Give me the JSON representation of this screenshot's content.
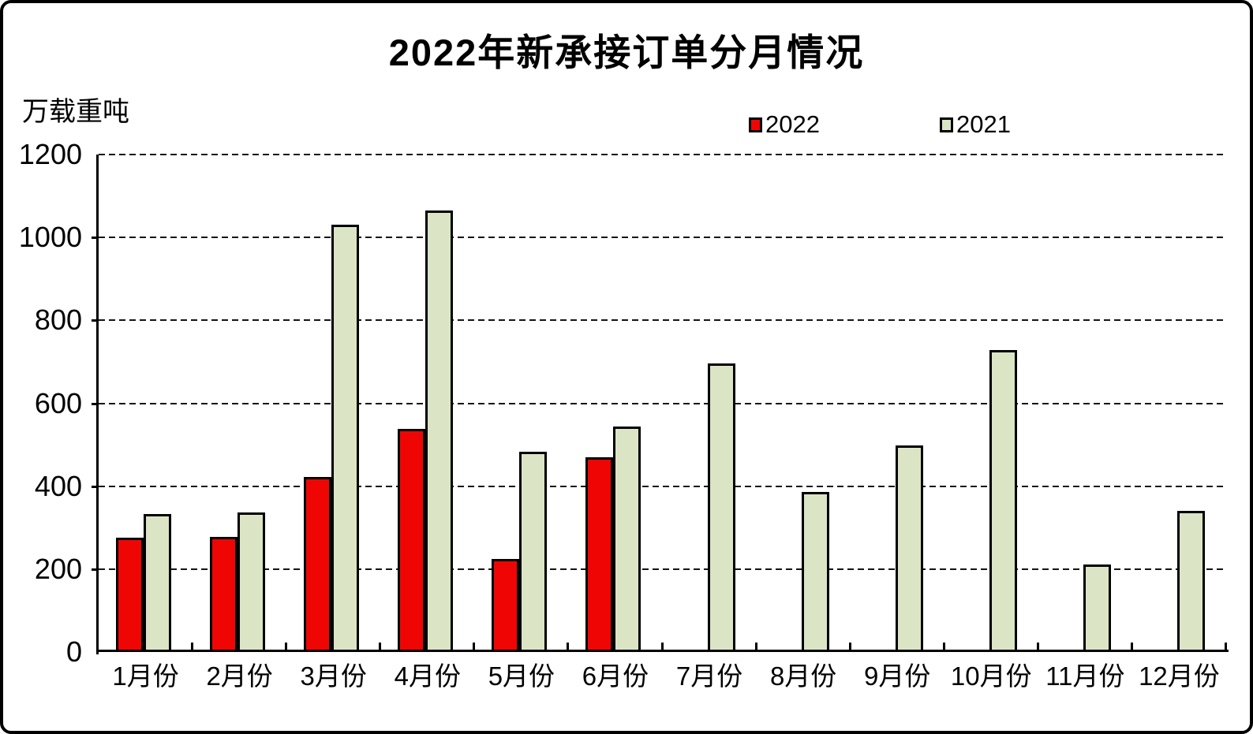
{
  "chart_data": {
    "type": "bar",
    "title": "2022年新承接订单分月情况",
    "ylabel": "万载重吨",
    "categories": [
      "1月份",
      "2月份",
      "3月份",
      "4月份",
      "5月份",
      "6月份",
      "7月份",
      "8月份",
      "9月份",
      "10月份",
      "11月份",
      "12月份"
    ],
    "series": [
      {
        "name": "2022",
        "color": "#f00505",
        "values": [
          276,
          278,
          422,
          538,
          224,
          470,
          null,
          null,
          null,
          null,
          null,
          null
        ]
      },
      {
        "name": "2021",
        "color": "#dbe5c5",
        "values": [
          333,
          337,
          1030,
          1065,
          483,
          544,
          696,
          386,
          498,
          728,
          211,
          340
        ]
      }
    ],
    "ylim": [
      0,
      1200
    ],
    "yticks": [
      0,
      200,
      400,
      600,
      800,
      1000,
      1200
    ],
    "grid": "horizontal-dashed",
    "legend_position": "top-right",
    "bar_outline_color": "#000000",
    "background_color": "#ffffff"
  }
}
